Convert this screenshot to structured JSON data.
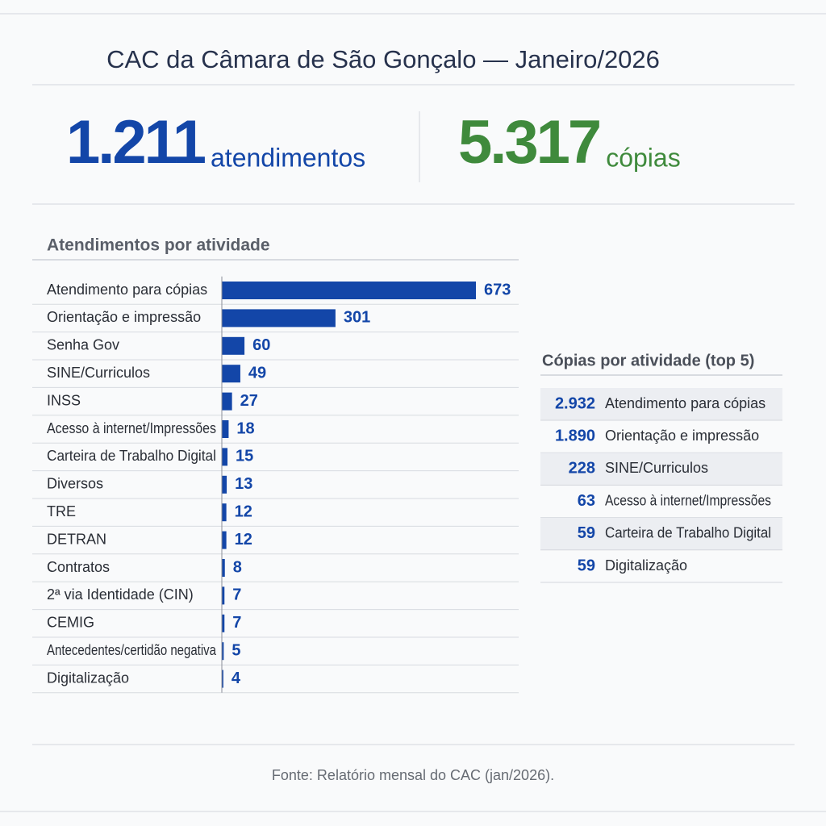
{
  "title": "CAC da Câmara de São Gonçalo — Janeiro/2026",
  "kpis": [
    {
      "value": "1.211",
      "label": "atendimentos",
      "color": "#1346a8"
    },
    {
      "value": "5.317",
      "label": "cópias",
      "color": "#3f8a3c"
    }
  ],
  "chart_data": {
    "type": "bar",
    "orientation": "horizontal",
    "title": "Atendimentos por atividade",
    "categories": [
      "Atendimento para cópias",
      "Orientação e impressão",
      "Senha Gov",
      "SINE/Curriculos",
      "INSS",
      "Acesso à internet/Impressões",
      "Carteira de Trabalho Digital",
      "Diversos",
      "TRE",
      "DETRAN",
      "Contratos",
      "2ª via Identidade (CIN)",
      "CEMIG",
      "Antecedentes/certidão negativa",
      "Digitalização"
    ],
    "values": [
      673,
      301,
      60,
      49,
      27,
      18,
      15,
      13,
      12,
      12,
      8,
      7,
      7,
      5,
      4
    ],
    "color": "#1346a8"
  },
  "copies_table": {
    "title": "Cópias por atividade (top 5)",
    "rows": [
      [
        "2.932",
        "Atendimento para cópias"
      ],
      [
        "1.890",
        "Orientação e impressão"
      ],
      [
        "228",
        "SINE/Curriculos"
      ],
      [
        "63",
        "Acesso à internet/Impressões"
      ],
      [
        "59",
        "Carteira de Trabalho Digital"
      ],
      [
        "59",
        "Digitalização"
      ]
    ]
  },
  "source": "Fonte: Relatório mensal do CAC (jan/2026)."
}
